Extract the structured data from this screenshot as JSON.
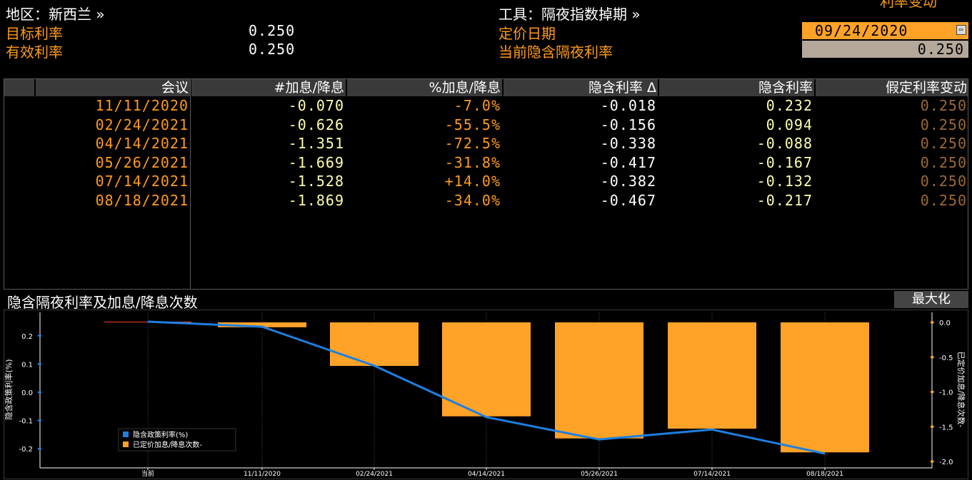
{
  "header": {
    "region_label": "地区：新西兰 »",
    "target_rate_label": "目标利率",
    "target_rate_value": "0.250",
    "effective_rate_label": "有效利率",
    "effective_rate_value": "0.250",
    "instrument_label": "工具：隔夜指数掉期 »",
    "pricing_date_label": "定价日期",
    "pricing_date_value": "09/24/2020",
    "implied_rate_label": "当前隐含隔夜利率",
    "implied_rate_value": "0.250",
    "corner_partial_text": "利率变动"
  },
  "table": {
    "columns": [
      "会议",
      "#加息/降息",
      "%加息/降息",
      "隐含利率 Δ",
      "隐含利率",
      "假定利率变动"
    ],
    "rows": [
      {
        "meeting": "11/11/2020",
        "hikes": "-0.070",
        "pct": "-7.0%",
        "delta": "-0.018",
        "implied": "0.232",
        "assumed": "0.250"
      },
      {
        "meeting": "02/24/2021",
        "hikes": "-0.626",
        "pct": "-55.5%",
        "delta": "-0.156",
        "implied": "0.094",
        "assumed": "0.250"
      },
      {
        "meeting": "04/14/2021",
        "hikes": "-1.351",
        "pct": "-72.5%",
        "delta": "-0.338",
        "implied": "-0.088",
        "assumed": "0.250"
      },
      {
        "meeting": "05/26/2021",
        "hikes": "-1.669",
        "pct": "-31.8%",
        "delta": "-0.417",
        "implied": "-0.167",
        "assumed": "0.250"
      },
      {
        "meeting": "07/14/2021",
        "hikes": "-1.528",
        "pct": "+14.0%",
        "delta": "-0.382",
        "implied": "-0.132",
        "assumed": "0.250"
      },
      {
        "meeting": "08/18/2021",
        "hikes": "-1.869",
        "pct": "-34.0%",
        "delta": "-0.467",
        "implied": "-0.217",
        "assumed": "0.250"
      }
    ]
  },
  "chart_section": {
    "title": "隐含隔夜利率及加息/降息次数",
    "maximize_label": "最大化"
  },
  "colors": {
    "bar": "#ffa228",
    "line": "#1e7fe0",
    "header_orange": "#ff9b1a"
  },
  "chart_data": {
    "type": "bar",
    "categories": [
      "当前",
      "11/11/2020",
      "02/24/2021",
      "04/14/2021",
      "05/26/2021",
      "07/14/2021",
      "08/18/2021"
    ],
    "series": [
      {
        "name": "隐含政策利率(%)",
        "type": "line",
        "axis": "left",
        "values": [
          0.25,
          0.232,
          0.094,
          -0.088,
          -0.167,
          -0.132,
          -0.217
        ]
      },
      {
        "name": "已定价加息/降息次数-",
        "type": "bar",
        "axis": "right",
        "values": [
          0,
          -0.07,
          -0.626,
          -1.351,
          -1.669,
          -1.528,
          -1.869
        ]
      }
    ],
    "ylabel_left": "隐含政策利率(%)",
    "ylabel_right": "已定价加息/降息次数-",
    "ylim_left": [
      -0.25,
      0.27
    ],
    "yticks_left": [
      0.2,
      0.1,
      0.0,
      -0.1,
      -0.2
    ],
    "yticks_left_labels": [
      "0.2",
      "0.1",
      "0.0",
      "-0.1",
      "-0.2"
    ],
    "ylim_right": [
      -2.0,
      0.1
    ],
    "yticks_right": [
      0.0,
      -0.5,
      -1.0,
      -1.5,
      -2.0
    ],
    "yticks_right_labels": [
      "0.0",
      "-0.5",
      "-1.0",
      "-1.5",
      "-2.0"
    ],
    "grid": true,
    "legend_position": "lower-left"
  }
}
